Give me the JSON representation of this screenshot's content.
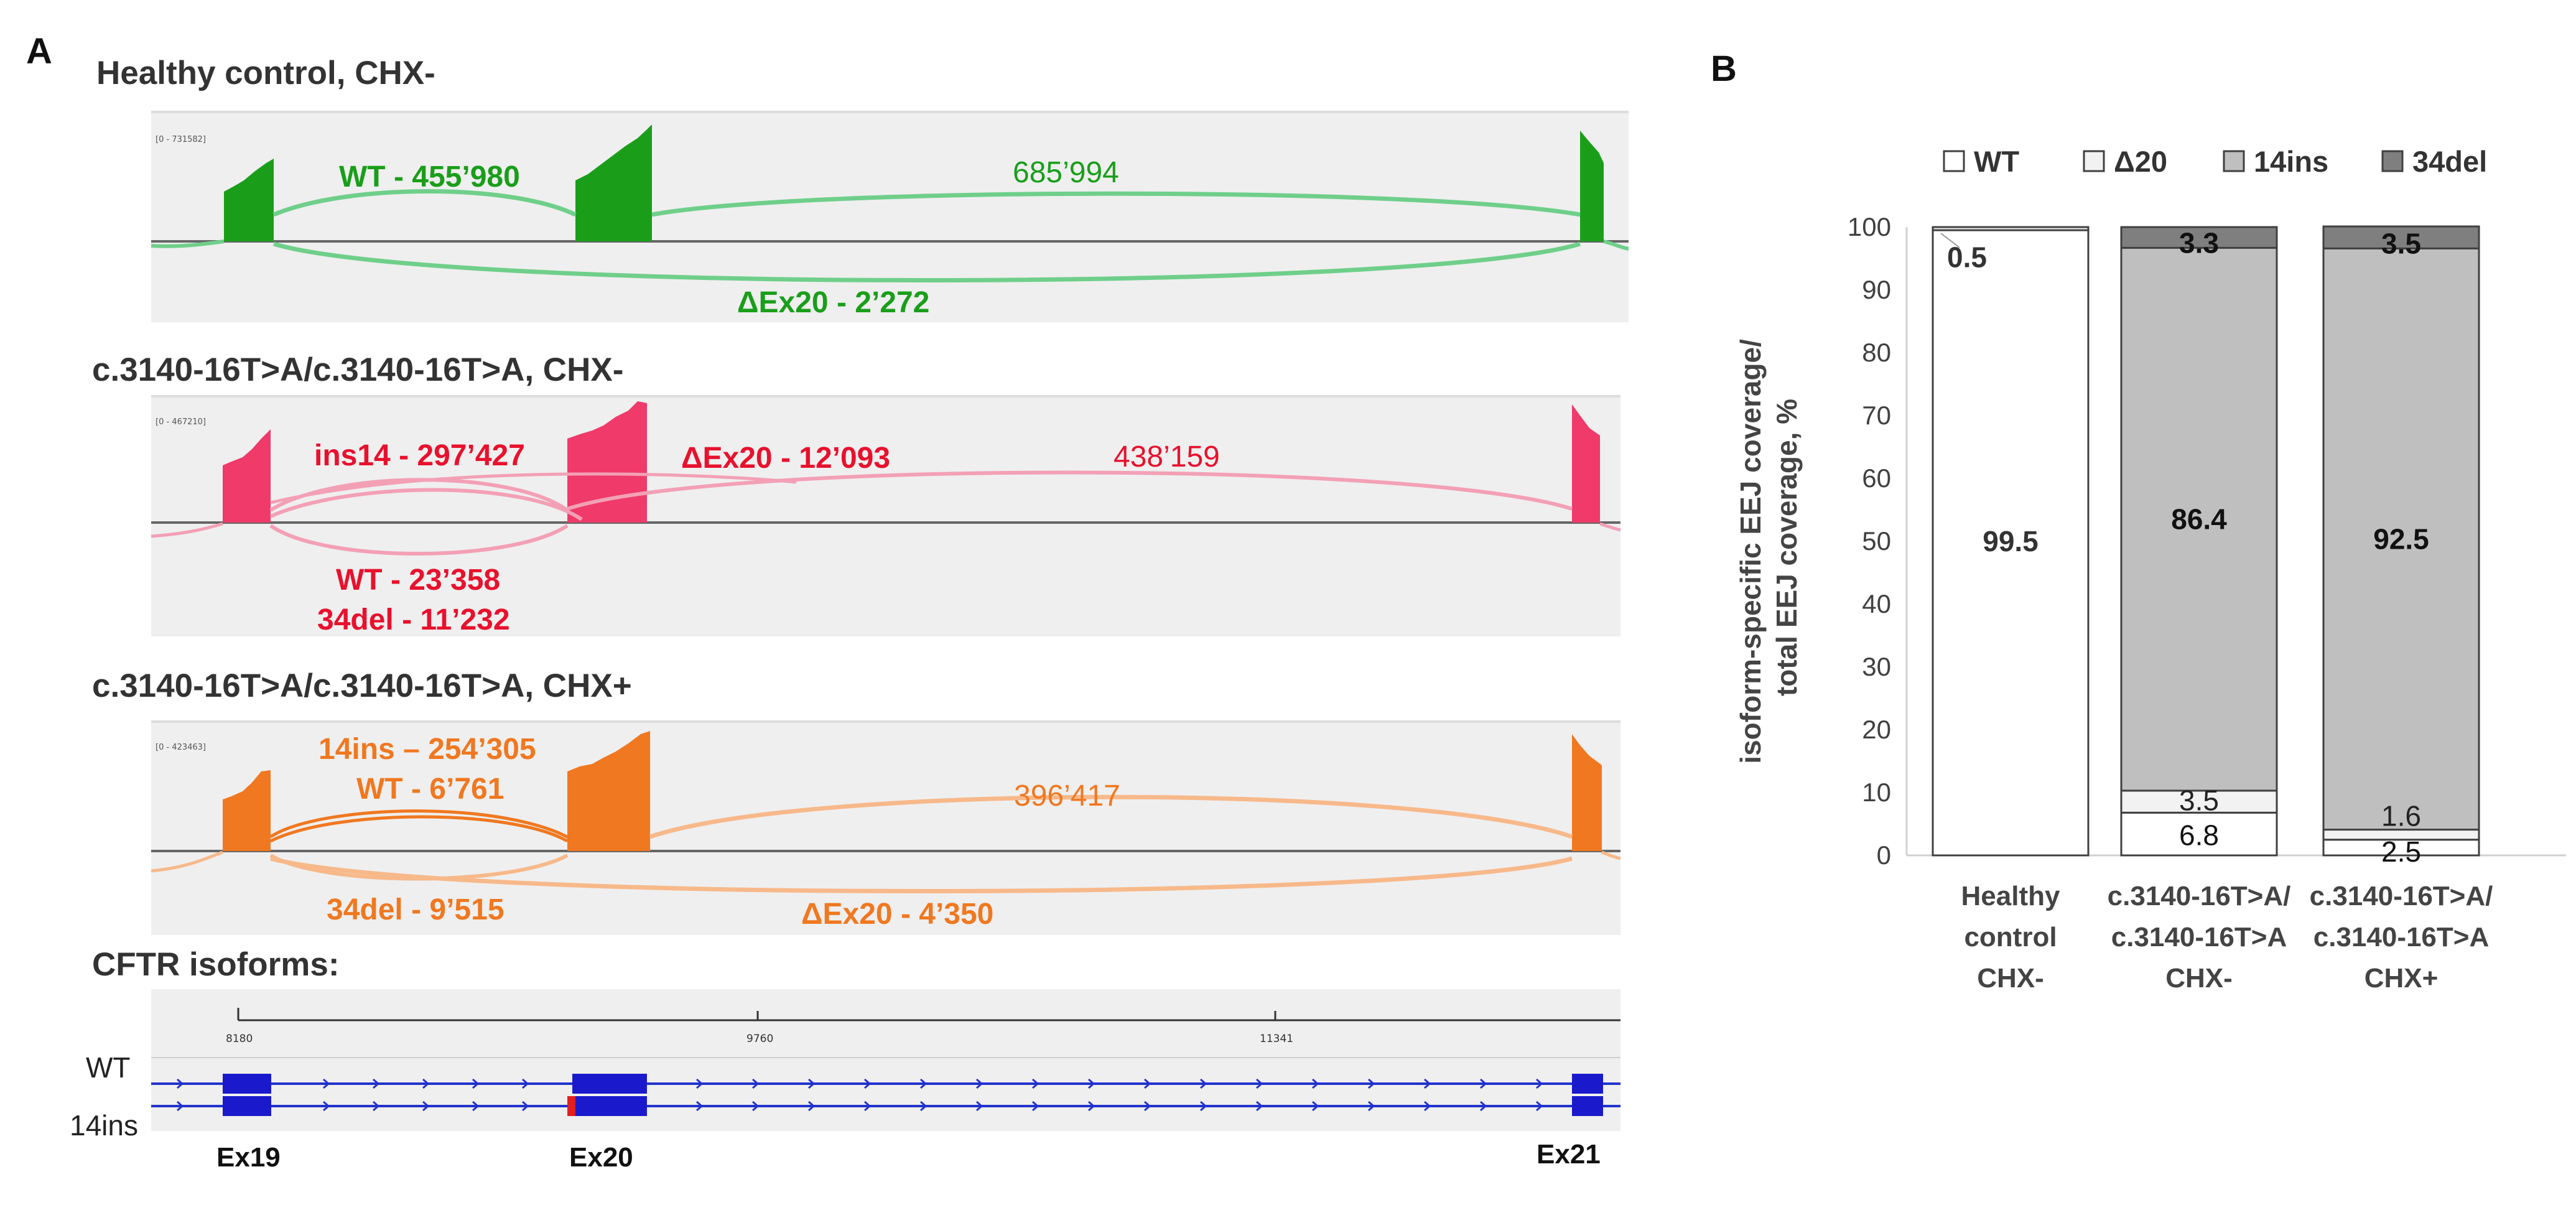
{
  "panel_a": {
    "label": "A",
    "tracks": [
      {
        "title": "Healthy control, CHX-",
        "range_label": "[0 - 731582]",
        "color": "#1a9e1a",
        "arc_color": "#6fcf8a",
        "junctions": [
          "WT - 455’980",
          "685’994",
          "ΔEx20  - 2’272"
        ]
      },
      {
        "title": "c.3140-16T>A/c.3140-16T>A, CHX-",
        "range_label": "[0 - 467210]",
        "color": "#ef3a6a",
        "arc_color": "#f3a0b5",
        "junctions": [
          "ins14 - 297’427",
          "ΔEx20 - 12’093",
          "438’159",
          "WT - 23’358",
          "34del - 11’232"
        ]
      },
      {
        "title": "c.3140-16T>A/c.3140-16T>A, CHX+",
        "range_label": "[0 - 423463]",
        "color": "#f07820",
        "arc_color": "#f7b98a",
        "junctions": [
          "14ins – 254’305",
          "WT - 6’761",
          "396’417",
          "34del - 9’515",
          "ΔEx20 - 4’350"
        ]
      }
    ],
    "isoforms": {
      "title": "CFTR isoforms:",
      "ruler_ticks": [
        "8180",
        "9760",
        "11341"
      ],
      "rows": [
        "WT",
        "14ins"
      ],
      "exons": [
        "Ex19",
        "Ex20",
        "Ex21"
      ]
    }
  },
  "panel_b": {
    "label": "B",
    "chart_data": {
      "type": "bar",
      "stacked": true,
      "title": "",
      "xlabel": "",
      "ylabel": "isoform-specific EEJ coverage/ total EEJ coverage, %",
      "ylim": [
        0,
        100
      ],
      "yticks": [
        0,
        10,
        20,
        30,
        40,
        50,
        60,
        70,
        80,
        90,
        100
      ],
      "legend_position": "top",
      "categories": [
        [
          "Healthy",
          "control",
          "CHX-"
        ],
        [
          "c.3140-16T>A/",
          "c.3140-16T>A",
          "CHX-"
        ],
        [
          "c.3140-16T>A/",
          "c.3140-16T>A",
          "CHX+"
        ]
      ],
      "series": [
        {
          "name": "WT",
          "color": "#ffffff",
          "values": [
            99.5,
            6.8,
            2.5
          ]
        },
        {
          "name": "Δ20",
          "color": "#f2f2f2",
          "values": [
            0.5,
            3.5,
            1.6
          ]
        },
        {
          "name": "14ins",
          "color": "#bfbfbf",
          "values": [
            0,
            86.4,
            92.5
          ]
        },
        {
          "name": "34del",
          "color": "#7f7f7f",
          "values": [
            0,
            3.3,
            3.5
          ]
        }
      ],
      "data_labels": [
        [
          "99.5",
          "0.5",
          "",
          ""
        ],
        [
          "6.8",
          "3.5",
          "86.4",
          "3.3"
        ],
        [
          "2.5",
          "1.6",
          "92.5",
          "3.5"
        ]
      ]
    }
  }
}
